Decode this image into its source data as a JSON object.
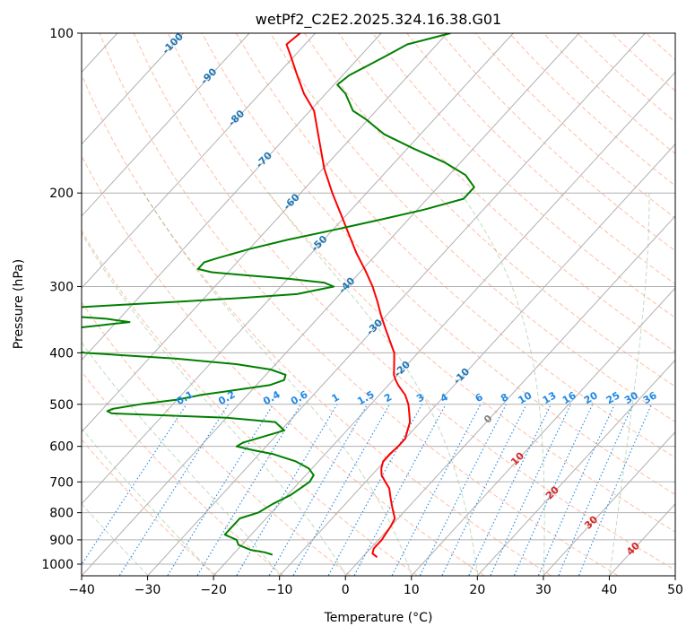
{
  "chart_data": {
    "type": "line",
    "title": "wetPf2_C2E2.2025.324.16.38.G01",
    "xlabel": "Temperature (°C)",
    "ylabel": "Pressure (hPa)",
    "xlim": [
      -40,
      50
    ],
    "ylim": [
      1050,
      100
    ],
    "y_scale": "log",
    "skew": "skew-T log-p",
    "grid": true,
    "x_ticks": [
      -40,
      -30,
      -20,
      -10,
      0,
      10,
      20,
      30,
      40,
      50
    ],
    "x_tick_labels": [
      "−40",
      "−30",
      "−20",
      "−10",
      "0",
      "10",
      "20",
      "30",
      "40",
      "50"
    ],
    "y_ticks": [
      100,
      200,
      300,
      400,
      500,
      600,
      700,
      800,
      900,
      1000
    ],
    "y_tick_labels": [
      "100",
      "200",
      "300",
      "400",
      "500",
      "600",
      "700",
      "800",
      "900",
      "1000"
    ],
    "series": [
      {
        "color": "#ff0000",
        "p": [
          970,
          955,
          935,
          920,
          900,
          880,
          850,
          820,
          800,
          780,
          750,
          720,
          700,
          680,
          660,
          640,
          620,
          600,
          580,
          560,
          540,
          520,
          500,
          480,
          470,
          460,
          450,
          440,
          430,
          410,
          400,
          380,
          360,
          340,
          320,
          300,
          280,
          260,
          240,
          220,
          200,
          180,
          160,
          140,
          130,
          120,
          110,
          105,
          100
        ],
        "t": [
          2.2,
          1.0,
          0.5,
          0.5,
          0.5,
          0.3,
          0.0,
          -0.5,
          -1.5,
          -2.5,
          -4.0,
          -5.5,
          -7.0,
          -8.5,
          -9.5,
          -10.2,
          -10.2,
          -10.0,
          -10.0,
          -10.8,
          -11.6,
          -12.9,
          -14.3,
          -16.1,
          -17.3,
          -18.5,
          -19.6,
          -20.6,
          -21.3,
          -22.8,
          -23.6,
          -25.9,
          -28.3,
          -30.8,
          -33.3,
          -36.1,
          -39.4,
          -43.1,
          -46.8,
          -50.8,
          -55.2,
          -59.8,
          -64.3,
          -69.4,
          -73.3,
          -76.9,
          -80.7,
          -82.8,
          -82.3
        ]
      },
      {
        "color": "#008000",
        "p": [
          960,
          950,
          940,
          920,
          900,
          880,
          850,
          820,
          800,
          770,
          740,
          700,
          680,
          660,
          640,
          620,
          610,
          600,
          590,
          580,
          560,
          540,
          530,
          520,
          515,
          510,
          500,
          490,
          480,
          470,
          460,
          450,
          440,
          430,
          420,
          410,
          400,
          390,
          375,
          365,
          355,
          350,
          345,
          340,
          335,
          330,
          325,
          320,
          315,
          310,
          300,
          295,
          290,
          285,
          282,
          278,
          270,
          265,
          255,
          245,
          235,
          225,
          215,
          205,
          195,
          185,
          175,
          165,
          155,
          145,
          140,
          130,
          125,
          120,
          115,
          110,
          105,
          100
        ],
        "t": [
          -14.0,
          -15.5,
          -18.0,
          -20.5,
          -21.5,
          -24.0,
          -24.0,
          -24.0,
          -22.0,
          -21.0,
          -19.5,
          -18.5,
          -18.8,
          -20.5,
          -23.5,
          -28.0,
          -31.5,
          -34.5,
          -34.0,
          -32.5,
          -29.5,
          -32.0,
          -40.0,
          -58.0,
          -59.0,
          -58.5,
          -55.0,
          -50.0,
          -47.0,
          -42.5,
          -38.0,
          -36.5,
          -37.0,
          -40.0,
          -46.0,
          -56.0,
          -70.5,
          -75.0,
          -78.0,
          -80.0,
          -72.0,
          -68.0,
          -72.0,
          -80.0,
          -83.0,
          -81.0,
          -72.0,
          -62.5,
          -54.0,
          -46.5,
          -42.0,
          -44.0,
          -50.0,
          -58.0,
          -62.5,
          -65.0,
          -65.0,
          -63.5,
          -60.0,
          -55.5,
          -50.0,
          -44.5,
          -39.0,
          -34.5,
          -34.5,
          -37.5,
          -42.5,
          -49.0,
          -55.5,
          -60.5,
          -63.5,
          -67.0,
          -69.5,
          -69.0,
          -67.5,
          -66.0,
          -64.5,
          -59.5
        ]
      }
    ],
    "dry_adiabats": {
      "color": "#ff4500",
      "line": "dashed",
      "theta_k": [
        250,
        260,
        270,
        280,
        290,
        300,
        310,
        320,
        330,
        340,
        350,
        360,
        370,
        380,
        390,
        400,
        410,
        420,
        430,
        440,
        450,
        460,
        470,
        480,
        490,
        500,
        510,
        520,
        530,
        540,
        550
      ]
    },
    "moist_adiabats": {
      "color": "#2e8b2e",
      "line": "dashed",
      "t_start_c": [
        -40,
        -30,
        -20,
        -10,
        0,
        10,
        20,
        30,
        40
      ]
    },
    "mixing_ratio_lines": {
      "color": "#1e88e5",
      "line": "dotted",
      "values": [
        0.1,
        0.2,
        0.4,
        0.6,
        1,
        1.5,
        2,
        3,
        4,
        6,
        8,
        10,
        13,
        16,
        20,
        25,
        30,
        36
      ],
      "labels": [
        "0.1",
        "0.2",
        "0.4",
        "0.6",
        "1",
        "1.5",
        "2",
        "3",
        "4",
        "6",
        "8",
        "10",
        "13",
        "16",
        "20",
        "25",
        "30",
        "36"
      ]
    },
    "isotherm_labels": {
      "color_cold": "#1f77b4",
      "color_zero": "#808080",
      "color_warm": "#d62728",
      "values": [
        -100,
        -90,
        -80,
        -70,
        -60,
        -50,
        -40,
        -30,
        -20,
        -10,
        0,
        10,
        20,
        30,
        40
      ],
      "labels": [
        "-100",
        "-90",
        "-80",
        "-70",
        "-60",
        "-50",
        "-40",
        "-30",
        "-20",
        "-10",
        "0",
        "10",
        "20",
        "30",
        "40"
      ]
    }
  }
}
